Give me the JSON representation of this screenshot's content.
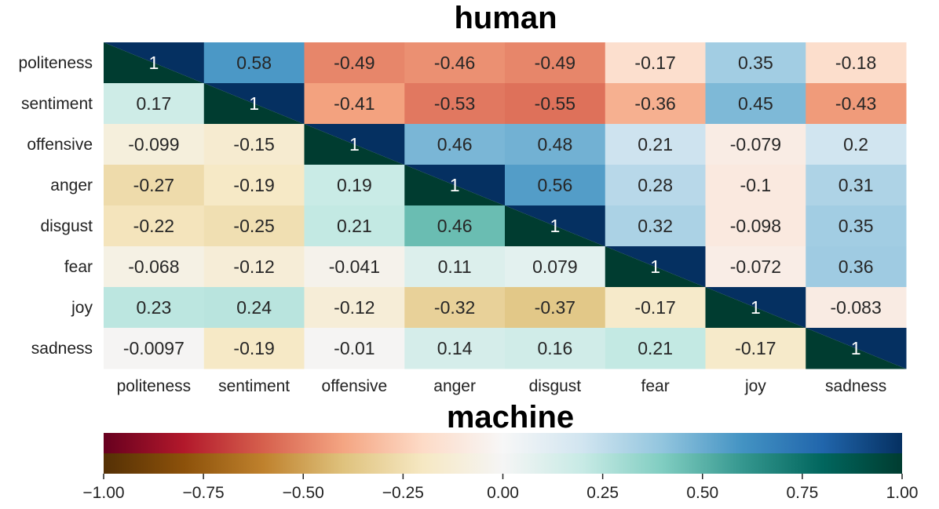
{
  "chart_data": {
    "type": "heatmap",
    "title_top": "human",
    "title_bottom": "machine",
    "categories": [
      "politeness",
      "sentiment",
      "offensive",
      "anger",
      "disgust",
      "fear",
      "joy",
      "sadness"
    ],
    "rows": [
      "politeness",
      "sentiment",
      "offensive",
      "anger",
      "disgust",
      "fear",
      "joy",
      "sadness"
    ],
    "values": [
      [
        1,
        0.58,
        -0.49,
        -0.46,
        -0.49,
        -0.17,
        0.35,
        -0.18
      ],
      [
        0.17,
        1,
        -0.41,
        -0.53,
        -0.55,
        -0.36,
        0.45,
        -0.43
      ],
      [
        -0.099,
        -0.15,
        1,
        0.46,
        0.48,
        0.21,
        -0.079,
        0.2
      ],
      [
        -0.27,
        -0.19,
        0.19,
        1,
        0.56,
        0.28,
        -0.1,
        0.31
      ],
      [
        -0.22,
        -0.25,
        0.21,
        0.46,
        1,
        0.32,
        -0.098,
        0.35
      ],
      [
        -0.068,
        -0.12,
        -0.041,
        0.11,
        0.079,
        1,
        -0.072,
        0.36
      ],
      [
        0.23,
        0.24,
        -0.12,
        -0.32,
        -0.37,
        -0.17,
        1,
        -0.083
      ],
      [
        -0.0097,
        -0.19,
        -0.01,
        0.14,
        0.16,
        0.21,
        -0.17,
        1
      ]
    ],
    "upper_triangle": "human",
    "lower_triangle": "machine",
    "colormaps": {
      "human": [
        "#67001f",
        "#b2182b",
        "#d6604d",
        "#f4a582",
        "#fddbc7",
        "#f7f7f7",
        "#d1e5f0",
        "#92c5de",
        "#4393c3",
        "#2166ac",
        "#053061"
      ],
      "machine": [
        "#543005",
        "#8c510a",
        "#bf812d",
        "#dfc27d",
        "#f6e8c3",
        "#f5f5f5",
        "#c7eae5",
        "#80cdc1",
        "#35978f",
        "#01665e",
        "#003c30"
      ]
    },
    "colorbar": {
      "range": [
        -1,
        1
      ],
      "ticks": [
        "−1.00",
        "−0.75",
        "−0.50",
        "−0.25",
        "0.00",
        "0.25",
        "0.50",
        "0.75",
        "1.00"
      ],
      "tick_values": [
        -1,
        -0.75,
        -0.5,
        -0.25,
        0,
        0.25,
        0.5,
        0.75,
        1
      ]
    }
  }
}
